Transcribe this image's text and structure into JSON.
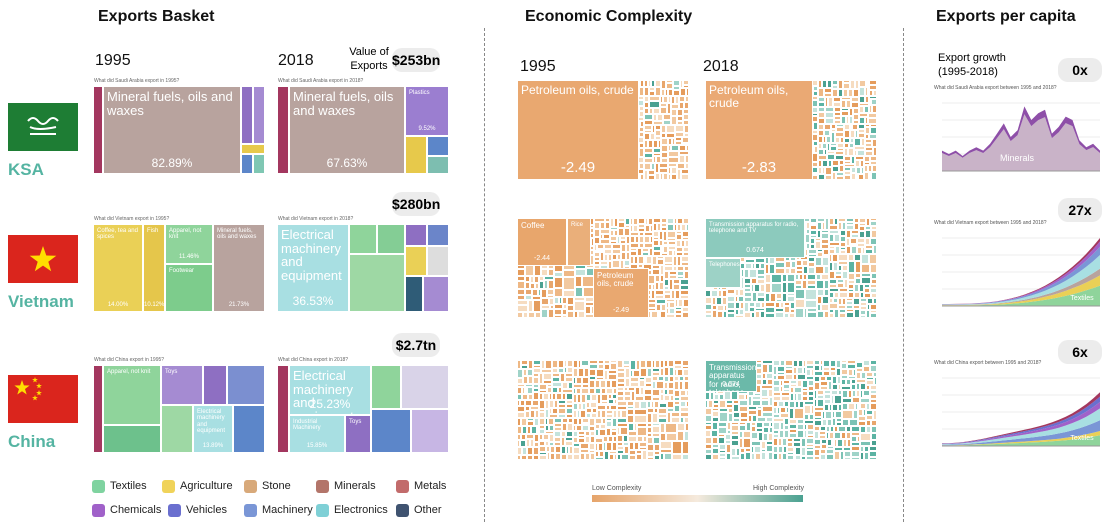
{
  "sections": {
    "basket": {
      "title": "Exports Basket",
      "years": [
        "1995",
        "2018"
      ],
      "value_label": "Value of Exports"
    },
    "complexity": {
      "title": "Economic Complexity",
      "years": [
        "1995",
        "2018"
      ],
      "low": "Low Complexity",
      "high": "High Complexity"
    },
    "per_capita": {
      "title": "Exports per capita",
      "growth_label": "Export growth (1995-2018)"
    }
  },
  "countries": [
    {
      "name": "KSA",
      "export_value": "$253bn",
      "growth": "0x",
      "basket": [
        {
          "caption": "What did Saudi Arabia export in 1995?",
          "blocks": [
            {
              "label": "Mineral fuels, oils and waxes",
              "share": "82.89%"
            }
          ]
        },
        {
          "caption": "What did Saudi Arabia export in 2018?",
          "blocks": [
            {
              "label": "Mineral fuels, oils and waxes",
              "share": "67.63%"
            },
            {
              "label": "Plastics",
              "share": "9.52%"
            }
          ]
        }
      ],
      "complexity": [
        {
          "blocks": [
            {
              "label": "Petroleum oils, crude",
              "value": "-2.49"
            }
          ]
        },
        {
          "blocks": [
            {
              "label": "Petroleum oils, crude",
              "value": "-2.83"
            }
          ]
        }
      ],
      "trend": {
        "caption": "What did Saudi Arabia export between 1995 and 2018?",
        "label": "Minerals"
      }
    },
    {
      "name": "Vietnam",
      "export_value": "$280bn",
      "growth": "27x",
      "basket": [
        {
          "caption": "What did Vietnam export in 1995?",
          "blocks": [
            {
              "label": "Coffee, tea and spices",
              "share": "14.00%"
            },
            {
              "label": "Fish",
              "share": "10.12%"
            },
            {
              "label": "Apparel, not knit",
              "share": "11.46%"
            },
            {
              "label": "Footwear"
            },
            {
              "label": "Mineral fuels, oils and waxes",
              "share": "21.73%"
            }
          ]
        },
        {
          "caption": "What did Vietnam export in 2018?",
          "blocks": [
            {
              "label": "Electrical machinery and equipment",
              "share": "36.53%"
            }
          ]
        }
      ],
      "complexity": [
        {
          "blocks": [
            {
              "label": "Coffee",
              "value": "-2.44"
            },
            {
              "label": "Rice"
            },
            {
              "label": "Petroleum oils, crude",
              "value": "-2.49"
            }
          ]
        },
        {
          "blocks": [
            {
              "label": "Transmission apparatus for radio, telephone and TV",
              "value": "0.674"
            },
            {
              "label": "Telephones"
            }
          ]
        }
      ],
      "trend": {
        "caption": "What did Vietnam export between 1995 and 2018?",
        "label": "Textiles"
      }
    },
    {
      "name": "China",
      "export_value": "$2.7tn",
      "growth": "6x",
      "basket": [
        {
          "caption": "What did China export in 1995?",
          "blocks": [
            {
              "label": "Apparel, not knit"
            },
            {
              "label": "Toys"
            },
            {
              "label": "Electrical machinery and equipment",
              "share": "13.89%"
            }
          ]
        },
        {
          "caption": "What did China export in 2018?",
          "blocks": [
            {
              "label": "Electrical machinery and equipment",
              "share": "25.23%"
            },
            {
              "label": "Industrial Machinery",
              "share": "15.85%"
            },
            {
              "label": "Toys"
            }
          ]
        }
      ],
      "complexity": [
        {
          "blocks": []
        },
        {
          "blocks": [
            {
              "label": "Transmission apparatus for radio, telephone and TV",
              "value": "0.674"
            }
          ]
        }
      ],
      "trend": {
        "caption": "What did China export between 1995 and 2018?",
        "label": "Textiles"
      }
    }
  ],
  "legend": [
    "Textiles",
    "Agriculture",
    "Stone",
    "Minerals",
    "Metals",
    "Chemicals",
    "Vehicles",
    "Machinery",
    "Electronics",
    "Other"
  ]
}
